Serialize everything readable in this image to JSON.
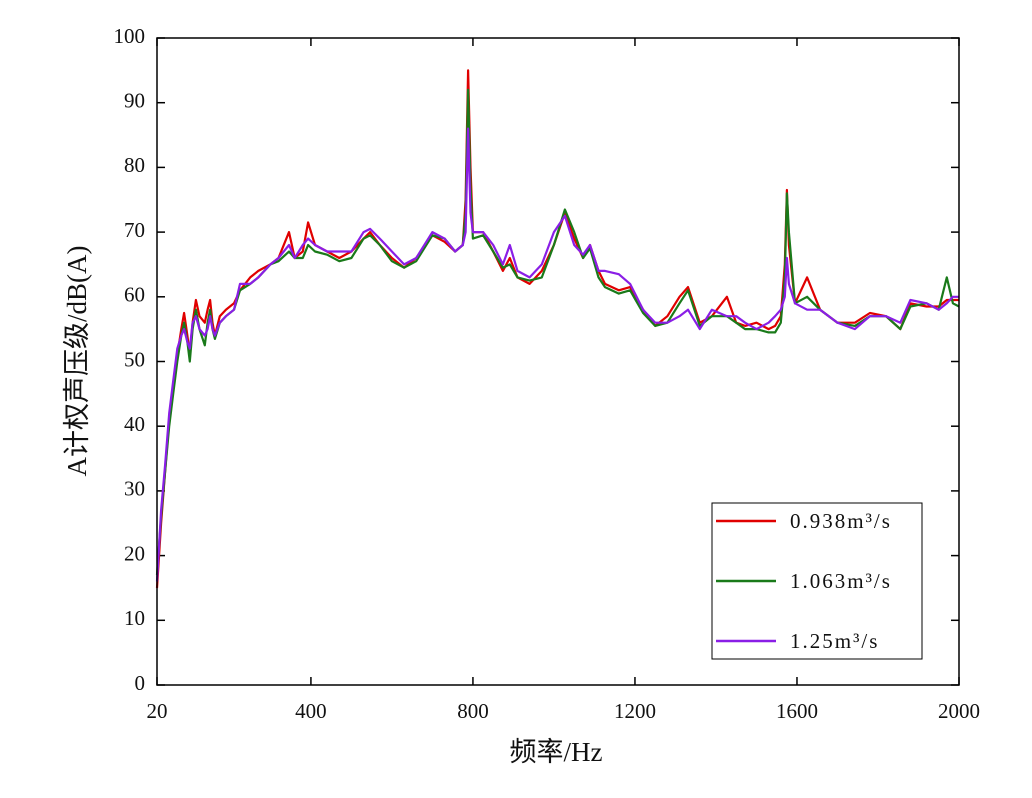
{
  "chart_data": {
    "type": "line",
    "xlabel": "频率/Hz",
    "ylabel": "A计权声压级/dB(A)",
    "x": [
      20,
      30,
      40,
      50,
      60,
      70,
      80,
      87,
      95,
      101,
      108,
      116,
      125,
      138,
      145,
      151,
      157,
      163,
      175,
      190,
      210,
      225,
      250,
      270,
      300,
      320,
      346,
      360,
      380,
      393,
      410,
      440,
      470,
      500,
      530,
      546,
      570,
      600,
      630,
      660,
      700,
      730,
      756,
      775,
      782,
      788,
      794,
      800,
      825,
      850,
      874,
      891,
      910,
      940,
      970,
      1000,
      1027,
      1050,
      1072,
      1089,
      1110,
      1126,
      1160,
      1188,
      1220,
      1250,
      1280,
      1310,
      1331,
      1360,
      1390,
      1427,
      1450,
      1472,
      1500,
      1530,
      1546,
      1560,
      1570,
      1575,
      1580,
      1595,
      1625,
      1657,
      1700,
      1743,
      1780,
      1820,
      1855,
      1880,
      1920,
      1950,
      1970,
      1985,
      2000
    ],
    "series": [
      {
        "name": "0.938m³/s",
        "color": "#e00000",
        "values": [
          15,
          25,
          33,
          41,
          46,
          51,
          55,
          57.5,
          54,
          51,
          56,
          59.5,
          57,
          56,
          58,
          59.5,
          56,
          54,
          57,
          58,
          59,
          61,
          63,
          64,
          65,
          66,
          70,
          66,
          67,
          71.5,
          68,
          67,
          66,
          67,
          69,
          70,
          68,
          66,
          64.5,
          66,
          69.5,
          68.5,
          67,
          68,
          75,
          95,
          80,
          70,
          70,
          67,
          64,
          66,
          63,
          62,
          64,
          68,
          73,
          69,
          66,
          68,
          64,
          62,
          61,
          61.5,
          58,
          55.5,
          57,
          60,
          61.5,
          56,
          57,
          60,
          56,
          55.5,
          56,
          55,
          55.5,
          57,
          65,
          76.5,
          68,
          59,
          63,
          58,
          56,
          56,
          57.5,
          57,
          55,
          59,
          58.5,
          58.5,
          59.5,
          59.5,
          59.5
        ]
      },
      {
        "name": "1.063m³/s",
        "color": "#1a7a1a",
        "values": [
          17,
          26,
          33,
          40,
          45,
          50,
          54,
          56,
          53,
          50,
          55,
          58,
          55,
          52.5,
          56,
          58,
          55,
          53.5,
          56,
          57,
          58,
          61,
          62,
          63,
          65,
          65.5,
          67,
          66,
          66,
          68,
          67,
          66.5,
          65.5,
          66,
          69,
          69.5,
          68,
          65.5,
          64.5,
          65.5,
          69.5,
          69,
          67,
          68,
          73,
          92,
          77,
          69,
          69.5,
          67,
          64.5,
          65,
          63,
          62.5,
          63,
          68,
          73.5,
          70,
          66,
          67.5,
          63,
          61.5,
          60.5,
          61,
          57.5,
          55.5,
          56,
          59,
          61,
          55.5,
          57,
          57,
          56,
          55,
          55,
          54.5,
          54.5,
          56,
          63,
          76,
          70,
          59,
          60,
          58,
          56,
          55.5,
          57,
          57,
          55,
          58.5,
          59,
          58,
          63,
          59,
          58.5
        ]
      },
      {
        "name": "1.25m³/s",
        "color": "#8a1ee6",
        "values": [
          16,
          27,
          34,
          42,
          47,
          52,
          54,
          55,
          53,
          52,
          56,
          57,
          55,
          54,
          55,
          57,
          55,
          54,
          56,
          57,
          58,
          62,
          62,
          63,
          65,
          66,
          68,
          66,
          68,
          69,
          68,
          67,
          67,
          67,
          70,
          70.5,
          69,
          67,
          65,
          66,
          70,
          69,
          67,
          68,
          70,
          86,
          73,
          70,
          70,
          68,
          65,
          68,
          64,
          63,
          65,
          70,
          72.5,
          68,
          66.5,
          68,
          64,
          64,
          63.5,
          62,
          58,
          56,
          56,
          57,
          58,
          55,
          58,
          57,
          57,
          56,
          55,
          56,
          57,
          58,
          60,
          66,
          62,
          59,
          58,
          58,
          56,
          55,
          57,
          57,
          56,
          59.5,
          59,
          58,
          59,
          60,
          60
        ]
      }
    ],
    "xlim": [
      20,
      2000
    ],
    "xticks": [
      20,
      400,
      800,
      1200,
      1600,
      2000
    ],
    "ylim": [
      0,
      100
    ],
    "yticks": [
      0,
      10,
      20,
      30,
      40,
      50,
      60,
      70,
      80,
      90,
      100
    ],
    "legend": "lower right"
  }
}
